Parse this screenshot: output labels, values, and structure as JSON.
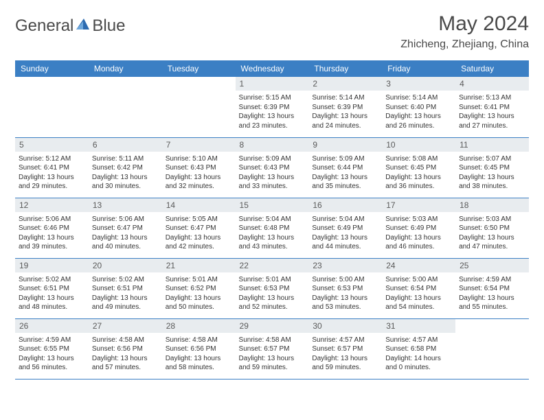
{
  "brand": {
    "part1": "General",
    "part2": "Blue"
  },
  "title": "May 2024",
  "location": "Zhicheng, Zhejiang, China",
  "colors": {
    "header_bg": "#3b7fc4",
    "header_text": "#ffffff",
    "daynum_bg": "#e8ecef",
    "border": "#3b7fc4",
    "text": "#333333",
    "logo_text": "#4a4a4a",
    "logo_accent": "#2d6bb0"
  },
  "day_names": [
    "Sunday",
    "Monday",
    "Tuesday",
    "Wednesday",
    "Thursday",
    "Friday",
    "Saturday"
  ],
  "weeks": [
    [
      {
        "n": "",
        "sr": "",
        "ss": "",
        "dl": "",
        "empty": true
      },
      {
        "n": "",
        "sr": "",
        "ss": "",
        "dl": "",
        "empty": true
      },
      {
        "n": "",
        "sr": "",
        "ss": "",
        "dl": "",
        "empty": true
      },
      {
        "n": "1",
        "sr": "Sunrise: 5:15 AM",
        "ss": "Sunset: 6:39 PM",
        "dl": "Daylight: 13 hours and 23 minutes."
      },
      {
        "n": "2",
        "sr": "Sunrise: 5:14 AM",
        "ss": "Sunset: 6:39 PM",
        "dl": "Daylight: 13 hours and 24 minutes."
      },
      {
        "n": "3",
        "sr": "Sunrise: 5:14 AM",
        "ss": "Sunset: 6:40 PM",
        "dl": "Daylight: 13 hours and 26 minutes."
      },
      {
        "n": "4",
        "sr": "Sunrise: 5:13 AM",
        "ss": "Sunset: 6:41 PM",
        "dl": "Daylight: 13 hours and 27 minutes."
      }
    ],
    [
      {
        "n": "5",
        "sr": "Sunrise: 5:12 AM",
        "ss": "Sunset: 6:41 PM",
        "dl": "Daylight: 13 hours and 29 minutes."
      },
      {
        "n": "6",
        "sr": "Sunrise: 5:11 AM",
        "ss": "Sunset: 6:42 PM",
        "dl": "Daylight: 13 hours and 30 minutes."
      },
      {
        "n": "7",
        "sr": "Sunrise: 5:10 AM",
        "ss": "Sunset: 6:43 PM",
        "dl": "Daylight: 13 hours and 32 minutes."
      },
      {
        "n": "8",
        "sr": "Sunrise: 5:09 AM",
        "ss": "Sunset: 6:43 PM",
        "dl": "Daylight: 13 hours and 33 minutes."
      },
      {
        "n": "9",
        "sr": "Sunrise: 5:09 AM",
        "ss": "Sunset: 6:44 PM",
        "dl": "Daylight: 13 hours and 35 minutes."
      },
      {
        "n": "10",
        "sr": "Sunrise: 5:08 AM",
        "ss": "Sunset: 6:45 PM",
        "dl": "Daylight: 13 hours and 36 minutes."
      },
      {
        "n": "11",
        "sr": "Sunrise: 5:07 AM",
        "ss": "Sunset: 6:45 PM",
        "dl": "Daylight: 13 hours and 38 minutes."
      }
    ],
    [
      {
        "n": "12",
        "sr": "Sunrise: 5:06 AM",
        "ss": "Sunset: 6:46 PM",
        "dl": "Daylight: 13 hours and 39 minutes."
      },
      {
        "n": "13",
        "sr": "Sunrise: 5:06 AM",
        "ss": "Sunset: 6:47 PM",
        "dl": "Daylight: 13 hours and 40 minutes."
      },
      {
        "n": "14",
        "sr": "Sunrise: 5:05 AM",
        "ss": "Sunset: 6:47 PM",
        "dl": "Daylight: 13 hours and 42 minutes."
      },
      {
        "n": "15",
        "sr": "Sunrise: 5:04 AM",
        "ss": "Sunset: 6:48 PM",
        "dl": "Daylight: 13 hours and 43 minutes."
      },
      {
        "n": "16",
        "sr": "Sunrise: 5:04 AM",
        "ss": "Sunset: 6:49 PM",
        "dl": "Daylight: 13 hours and 44 minutes."
      },
      {
        "n": "17",
        "sr": "Sunrise: 5:03 AM",
        "ss": "Sunset: 6:49 PM",
        "dl": "Daylight: 13 hours and 46 minutes."
      },
      {
        "n": "18",
        "sr": "Sunrise: 5:03 AM",
        "ss": "Sunset: 6:50 PM",
        "dl": "Daylight: 13 hours and 47 minutes."
      }
    ],
    [
      {
        "n": "19",
        "sr": "Sunrise: 5:02 AM",
        "ss": "Sunset: 6:51 PM",
        "dl": "Daylight: 13 hours and 48 minutes."
      },
      {
        "n": "20",
        "sr": "Sunrise: 5:02 AM",
        "ss": "Sunset: 6:51 PM",
        "dl": "Daylight: 13 hours and 49 minutes."
      },
      {
        "n": "21",
        "sr": "Sunrise: 5:01 AM",
        "ss": "Sunset: 6:52 PM",
        "dl": "Daylight: 13 hours and 50 minutes."
      },
      {
        "n": "22",
        "sr": "Sunrise: 5:01 AM",
        "ss": "Sunset: 6:53 PM",
        "dl": "Daylight: 13 hours and 52 minutes."
      },
      {
        "n": "23",
        "sr": "Sunrise: 5:00 AM",
        "ss": "Sunset: 6:53 PM",
        "dl": "Daylight: 13 hours and 53 minutes."
      },
      {
        "n": "24",
        "sr": "Sunrise: 5:00 AM",
        "ss": "Sunset: 6:54 PM",
        "dl": "Daylight: 13 hours and 54 minutes."
      },
      {
        "n": "25",
        "sr": "Sunrise: 4:59 AM",
        "ss": "Sunset: 6:54 PM",
        "dl": "Daylight: 13 hours and 55 minutes."
      }
    ],
    [
      {
        "n": "26",
        "sr": "Sunrise: 4:59 AM",
        "ss": "Sunset: 6:55 PM",
        "dl": "Daylight: 13 hours and 56 minutes."
      },
      {
        "n": "27",
        "sr": "Sunrise: 4:58 AM",
        "ss": "Sunset: 6:56 PM",
        "dl": "Daylight: 13 hours and 57 minutes."
      },
      {
        "n": "28",
        "sr": "Sunrise: 4:58 AM",
        "ss": "Sunset: 6:56 PM",
        "dl": "Daylight: 13 hours and 58 minutes."
      },
      {
        "n": "29",
        "sr": "Sunrise: 4:58 AM",
        "ss": "Sunset: 6:57 PM",
        "dl": "Daylight: 13 hours and 59 minutes."
      },
      {
        "n": "30",
        "sr": "Sunrise: 4:57 AM",
        "ss": "Sunset: 6:57 PM",
        "dl": "Daylight: 13 hours and 59 minutes."
      },
      {
        "n": "31",
        "sr": "Sunrise: 4:57 AM",
        "ss": "Sunset: 6:58 PM",
        "dl": "Daylight: 14 hours and 0 minutes."
      },
      {
        "n": "",
        "sr": "",
        "ss": "",
        "dl": "",
        "empty": true
      }
    ]
  ]
}
